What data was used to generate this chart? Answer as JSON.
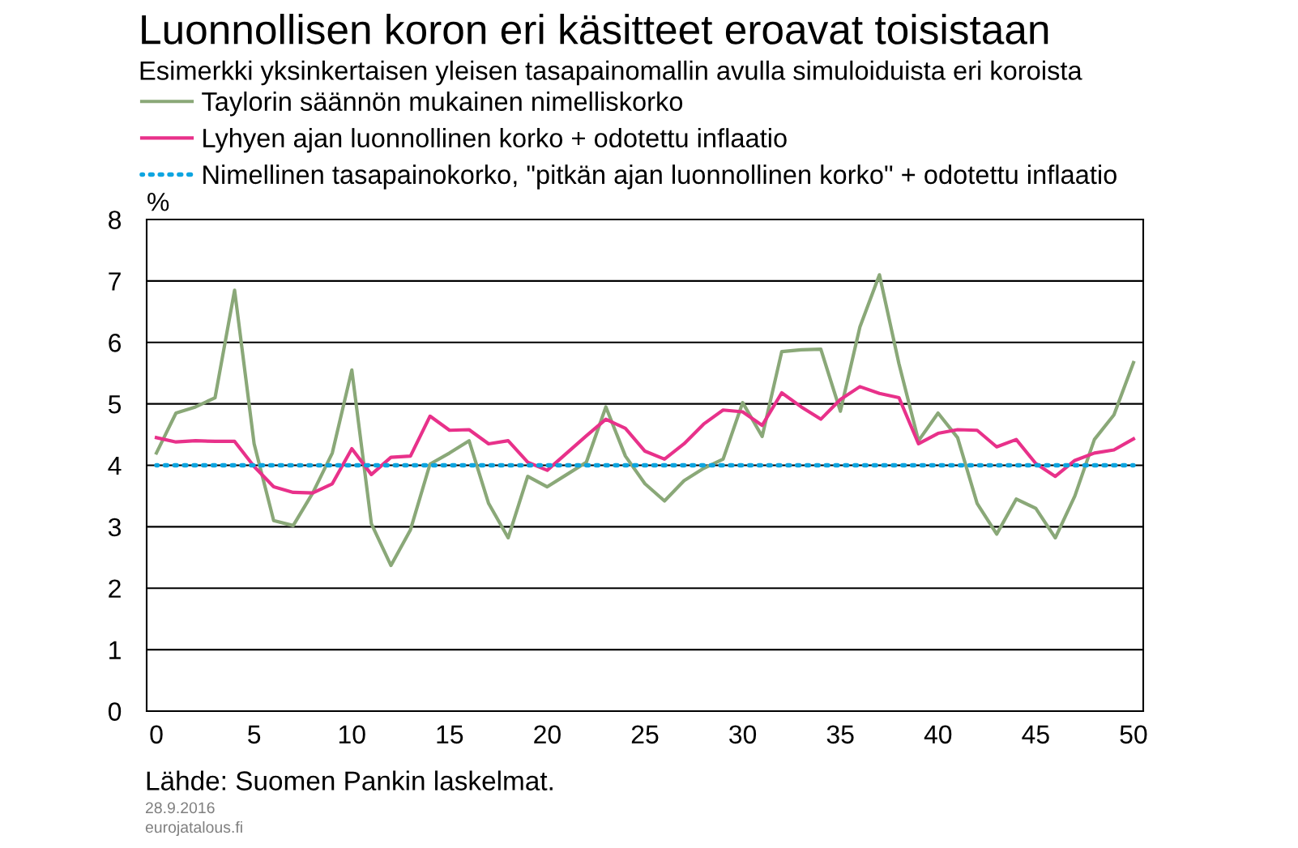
{
  "chart_data": {
    "type": "line",
    "title": "Luonnollisen koron eri käsitteet eroavat toisistaan",
    "subtitle": "Esimerkki yksinkertaisen yleisen tasapainomallin avulla simuloiduista eri koroista",
    "ylabel": "%",
    "annotations": [
      "Lähde: Suomen Pankin laskelmat.",
      "28.9.2016",
      "eurojatalous.fi"
    ],
    "x": [
      0,
      1,
      2,
      3,
      4,
      5,
      6,
      7,
      8,
      9,
      10,
      11,
      12,
      13,
      14,
      15,
      16,
      17,
      18,
      19,
      20,
      21,
      22,
      23,
      24,
      25,
      26,
      27,
      28,
      29,
      30,
      31,
      32,
      33,
      34,
      35,
      36,
      37,
      38,
      39,
      40,
      41,
      42,
      43,
      44,
      45,
      46,
      47,
      48,
      49,
      50
    ],
    "series": [
      {
        "name": "Taylorin säännön mukainen nimelliskorko",
        "color": "#8aa878",
        "line_style": "solid",
        "values": [
          4.2,
          4.85,
          4.95,
          5.1,
          6.85,
          4.35,
          3.1,
          3.02,
          3.55,
          4.2,
          5.55,
          3.05,
          2.37,
          2.95,
          4.02,
          4.2,
          4.4,
          3.38,
          2.82,
          3.82,
          3.65,
          3.85,
          4.05,
          4.95,
          4.15,
          3.7,
          3.42,
          3.75,
          3.95,
          4.1,
          5.02,
          4.47,
          5.85,
          5.88,
          5.89,
          4.88,
          6.25,
          7.1,
          5.65,
          4.4,
          4.85,
          4.45,
          3.38,
          2.88,
          3.45,
          3.3,
          2.82,
          3.5,
          4.42,
          4.82,
          5.67
        ]
      },
      {
        "name": "Lyhyen ajan luonnollinen korko + odotettu inflaatio",
        "color": "#e8318a",
        "line_style": "solid",
        "values": [
          4.45,
          4.38,
          4.4,
          4.39,
          4.39,
          3.98,
          3.65,
          3.56,
          3.55,
          3.7,
          4.27,
          3.85,
          4.13,
          4.15,
          4.8,
          4.57,
          4.58,
          4.35,
          4.4,
          4.05,
          3.92,
          4.2,
          4.48,
          4.75,
          4.6,
          4.23,
          4.1,
          4.35,
          4.67,
          4.9,
          4.87,
          4.65,
          5.18,
          4.95,
          4.75,
          5.07,
          5.28,
          5.17,
          5.1,
          4.35,
          4.52,
          4.58,
          4.57,
          4.3,
          4.42,
          4.03,
          3.82,
          4.08,
          4.2,
          4.25,
          4.43
        ]
      },
      {
        "name": "Nimellinen tasapainokorko, \"pitkän ajan luonnollinen korko\" + odotettu inflaatio",
        "color": "#0ea5e0",
        "line_style": "dotted",
        "values": [
          4,
          4,
          4,
          4,
          4,
          4,
          4,
          4,
          4,
          4,
          4,
          4,
          4,
          4,
          4,
          4,
          4,
          4,
          4,
          4,
          4,
          4,
          4,
          4,
          4,
          4,
          4,
          4,
          4,
          4,
          4,
          4,
          4,
          4,
          4,
          4,
          4,
          4,
          4,
          4,
          4,
          4,
          4,
          4,
          4,
          4,
          4,
          4,
          4,
          4,
          4
        ]
      }
    ],
    "xlim": [
      -0.5,
      50.5
    ],
    "xticks": [
      0,
      5,
      10,
      15,
      20,
      25,
      30,
      35,
      40,
      45,
      50
    ],
    "ylim": [
      0,
      8
    ],
    "yticks": [
      0,
      1,
      2,
      3,
      4,
      5,
      6,
      7,
      8
    ],
    "grid": "y",
    "legend": "top left"
  }
}
